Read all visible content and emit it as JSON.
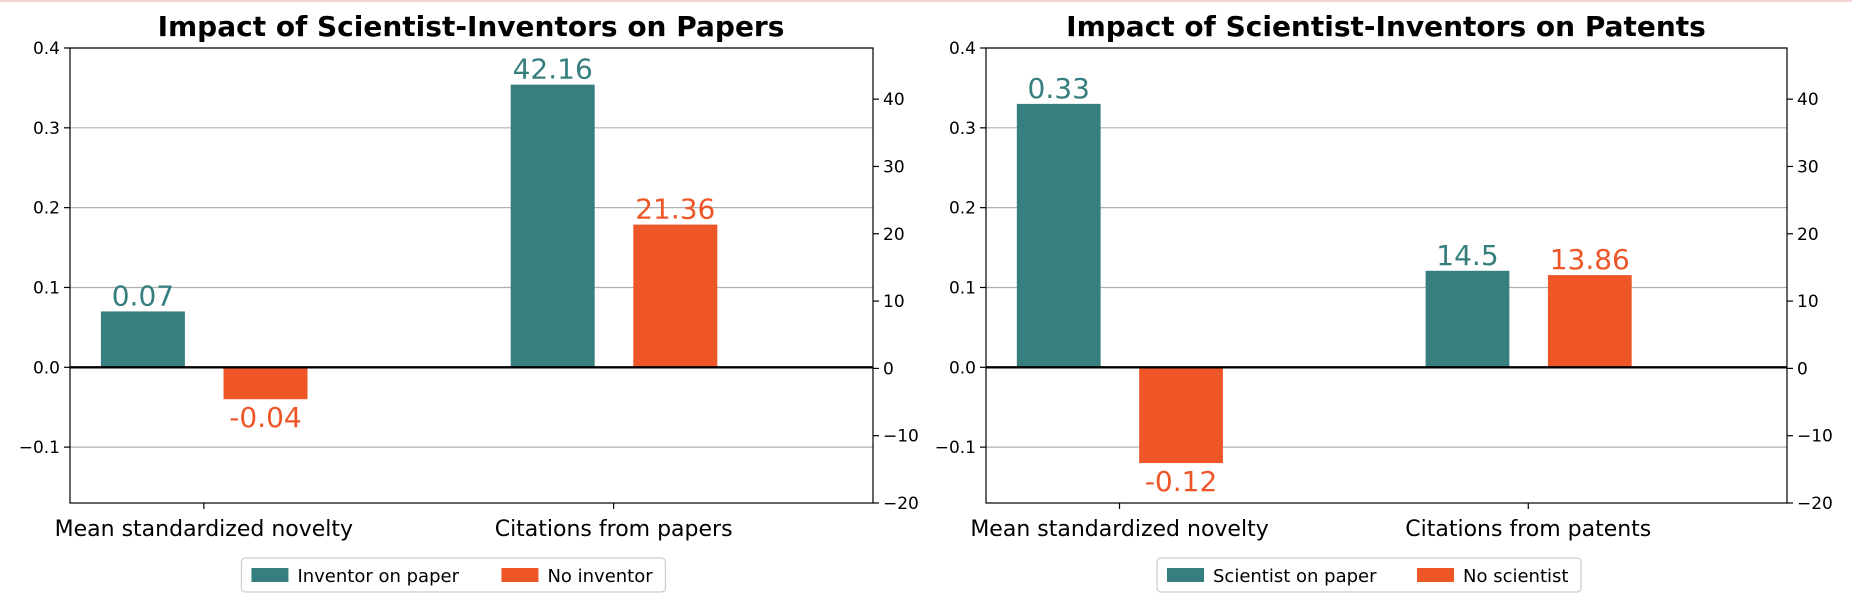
{
  "colors": {
    "series_a": "#367f7e",
    "series_b": "#ee5628"
  },
  "chart_data": [
    {
      "type": "bar",
      "title": "Impact of Scientist-Inventors on Papers",
      "categories": [
        "Mean standardized novelty",
        "Citations from papers"
      ],
      "series": [
        {
          "name": "Inventor on paper",
          "values": [
            0.07,
            42.16
          ]
        },
        {
          "name": "No inventor",
          "values": [
            -0.04,
            21.36
          ]
        }
      ],
      "value_labels": [
        [
          "0.07",
          "42.16"
        ],
        [
          "-0.04",
          "21.36"
        ]
      ],
      "category_axis": [
        "left",
        "right"
      ],
      "left_axis": {
        "ylim": [
          -0.17,
          0.4
        ],
        "ticks": [
          -0.1,
          0.0,
          0.1,
          0.2,
          0.3,
          0.4
        ],
        "tick_labels": [
          "−0.1",
          "0.0",
          "0.1",
          "0.2",
          "0.3",
          "0.4"
        ]
      },
      "right_axis": {
        "ylim": [
          -20,
          47.6
        ],
        "ticks": [
          -20,
          -10,
          0,
          10,
          20,
          30,
          40
        ],
        "tick_labels": [
          "−20",
          "−10",
          "0",
          "10",
          "20",
          "30",
          "40"
        ]
      },
      "grid": true,
      "legend": "bottom-center"
    },
    {
      "type": "bar",
      "title": "Impact of Scientist-Inventors on Patents",
      "categories": [
        "Mean standardized novelty",
        "Citations from patents"
      ],
      "series": [
        {
          "name": "Scientist on paper",
          "values": [
            0.33,
            14.5
          ]
        },
        {
          "name": "No scientist",
          "values": [
            -0.12,
            13.86
          ]
        }
      ],
      "value_labels": [
        [
          "0.33",
          "14.5"
        ],
        [
          "-0.12",
          "13.86"
        ]
      ],
      "category_axis": [
        "left",
        "right"
      ],
      "left_axis": {
        "ylim": [
          -0.17,
          0.4
        ],
        "ticks": [
          -0.1,
          0.0,
          0.1,
          0.2,
          0.3,
          0.4
        ],
        "tick_labels": [
          "−0.1",
          "0.0",
          "0.1",
          "0.2",
          "0.3",
          "0.4"
        ]
      },
      "right_axis": {
        "ylim": [
          -20,
          47.6
        ],
        "ticks": [
          -20,
          -10,
          0,
          10,
          20,
          30,
          40
        ],
        "tick_labels": [
          "−20",
          "−10",
          "0",
          "10",
          "20",
          "30",
          "40"
        ]
      },
      "grid": true,
      "legend": "bottom-center"
    }
  ]
}
